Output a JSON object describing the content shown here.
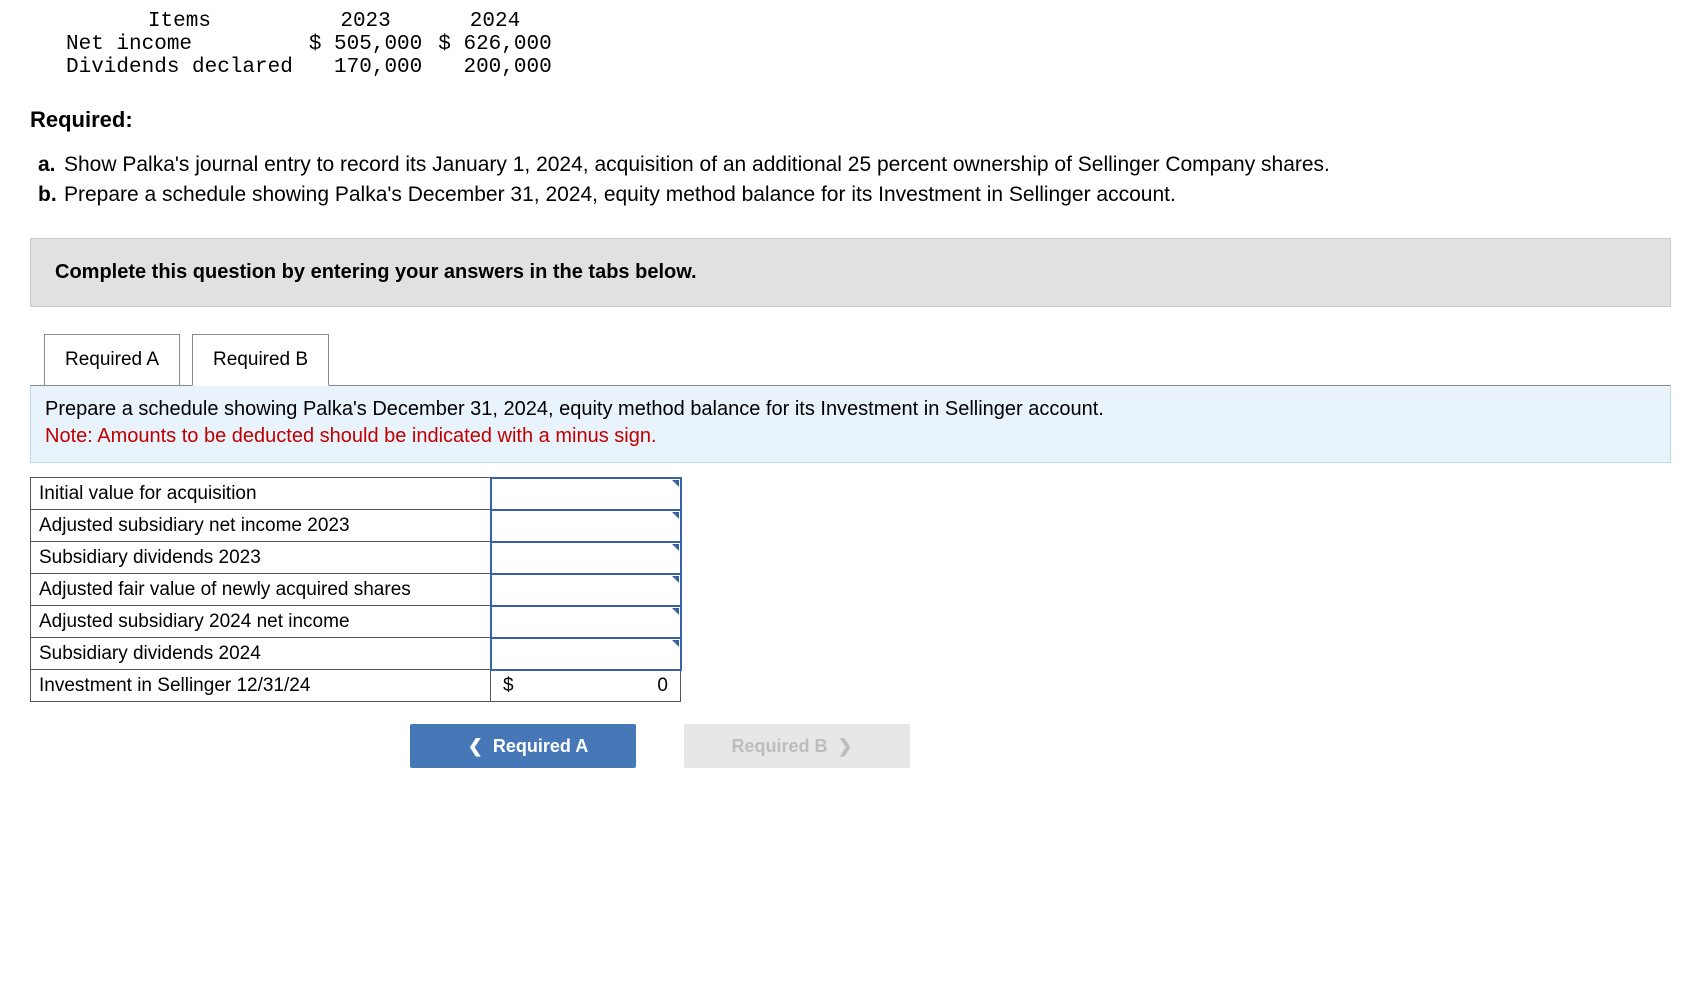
{
  "data_table": {
    "headers": [
      "Items",
      "2023",
      "2024"
    ],
    "rows": [
      {
        "label": "Net income",
        "y2023": "$ 505,000",
        "y2024": "$ 626,000"
      },
      {
        "label": "Dividends declared",
        "y2023": "170,000",
        "y2024": "200,000"
      }
    ]
  },
  "required_heading": "Required:",
  "requirements": [
    {
      "letter": "a.",
      "text": "Show Palka's journal entry to record its January 1, 2024, acquisition of an additional 25 percent ownership of Sellinger Company shares."
    },
    {
      "letter": "b.",
      "text": "Prepare a schedule showing Palka's December 31, 2024, equity method balance for its Investment in Sellinger account."
    }
  ],
  "instruction_bar": "Complete this question by entering your answers in the tabs below.",
  "tabs": {
    "a": "Required A",
    "b": "Required B",
    "active": "b"
  },
  "tab_b_prompt": {
    "main": "Prepare a schedule showing Palka's December 31, 2024, equity method balance for its Investment in Sellinger account.",
    "note": "Note: Amounts to be deducted should be indicated with a minus sign."
  },
  "schedule": {
    "rows": [
      "Initial value for acquisition",
      "Adjusted subsidiary net income 2023",
      "Subsidiary dividends 2023",
      "Adjusted fair value of newly acquired shares",
      "Adjusted subsidiary 2024 net income",
      "Subsidiary dividends 2024"
    ],
    "total_label": "Investment in Sellinger 12/31/24",
    "total_currency": "$",
    "total_value": "0"
  },
  "nav": {
    "prev_label": "Required A",
    "next_label": "Required B"
  }
}
